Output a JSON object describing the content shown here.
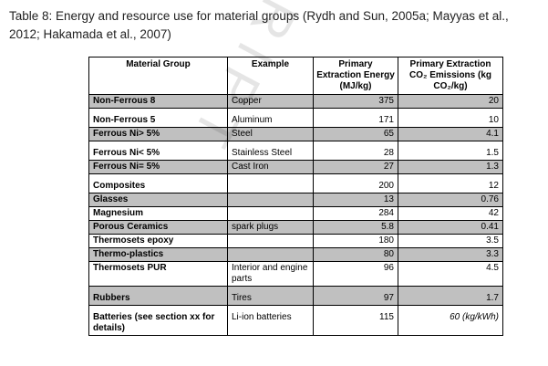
{
  "caption": "Table 8: Energy and resource use for material groups (Rydh and Sun, 2005a; Mayyas et al., 2012; Hakamada et al., 2007)",
  "watermark": "MANUSCRIPT",
  "table": {
    "headers": [
      "Material Group",
      "Example",
      "Primary Extraction Energy (MJ/kg)",
      "Primary Extraction CO₂ Emissions (kg CO₂/kg)"
    ],
    "rows": [
      {
        "group": "Non-Ferrous 8",
        "example": "Copper",
        "energy": "375",
        "co2": "20",
        "shade": true,
        "gap": false
      },
      {
        "group": "Non-Ferrous 5",
        "example": "Aluminum",
        "energy": "171",
        "co2": "10",
        "shade": false,
        "gap": true
      },
      {
        "group": "Ferrous Ni> 5%",
        "example": "Steel",
        "energy": "65",
        "co2": "4.1",
        "shade": true,
        "gap": false
      },
      {
        "group": "Ferrous Ni< 5%",
        "example": "Stainless Steel",
        "energy": "28",
        "co2": "1.5",
        "shade": false,
        "gap": true
      },
      {
        "group": "Ferrous Ni= 5%",
        "example": "Cast Iron",
        "energy": "27",
        "co2": "1.3",
        "shade": true,
        "gap": false
      },
      {
        "group": "Composites",
        "example": "",
        "energy": "200",
        "co2": "12",
        "shade": false,
        "gap": true
      },
      {
        "group": "Glasses",
        "example": "",
        "energy": "13",
        "co2": "0.76",
        "shade": true,
        "gap": false
      },
      {
        "group": "Magnesium",
        "example": "",
        "energy": "284",
        "co2": "42",
        "shade": false,
        "gap": false
      },
      {
        "group": "Porous Ceramics",
        "example": "spark plugs",
        "energy": "5.8",
        "co2": "0.41",
        "shade": true,
        "gap": false
      },
      {
        "group": "Thermosets epoxy",
        "example": "",
        "energy": "180",
        "co2": "3.5",
        "shade": false,
        "gap": false
      },
      {
        "group": "Thermo-plastics",
        "example": "",
        "energy": "80",
        "co2": "3.3",
        "shade": true,
        "gap": false
      },
      {
        "group": "Thermosets PUR",
        "example": "Interior and engine parts",
        "energy": "96",
        "co2": "4.5",
        "shade": false,
        "gap": false
      },
      {
        "group": "Rubbers",
        "example": "Tires",
        "energy": "97",
        "co2": "1.7",
        "shade": true,
        "gap": true
      },
      {
        "group": "Batteries (see section xx for details)",
        "example": "Li-ion batteries",
        "energy": "115",
        "co2": "60 (kg/kWh)",
        "shade": false,
        "gap": true,
        "co2_italic": true
      }
    ]
  }
}
